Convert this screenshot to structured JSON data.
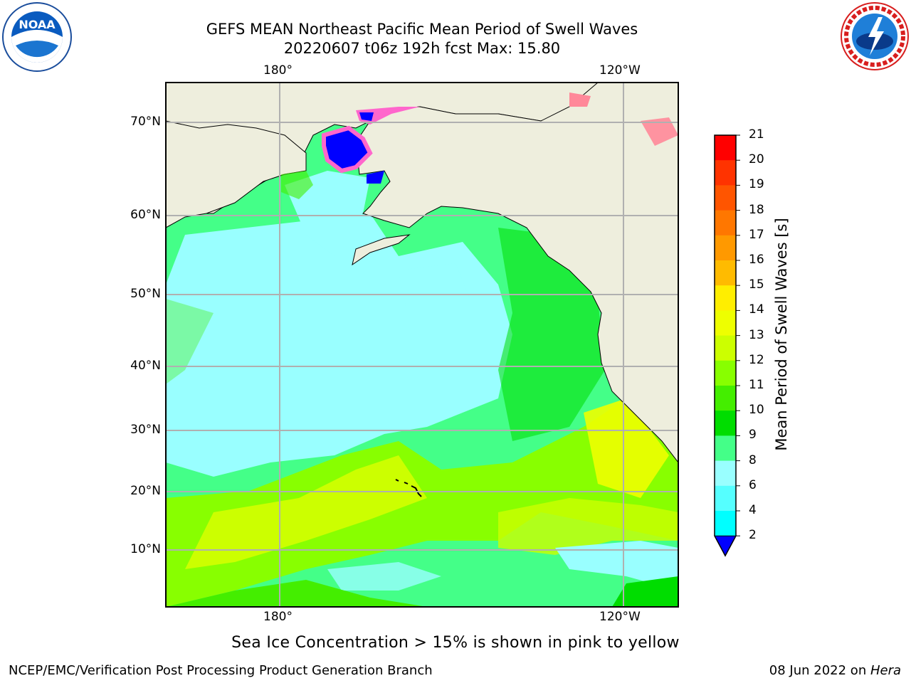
{
  "title": {
    "line1": "GEFS MEAN Northeast Pacific Mean Period of Swell Waves",
    "line2": "20220607 t06z 192h fcst   Max: 15.80"
  },
  "map": {
    "lon_top": [
      "180°",
      "120°W"
    ],
    "lon_bottom": [
      "180°",
      "120°W"
    ],
    "lat_labels": [
      "70°N",
      "60°N",
      "50°N",
      "40°N",
      "30°N",
      "20°N",
      "10°N"
    ],
    "land_color": "#eeeedd",
    "grid_color": "#b0b0b0"
  },
  "colorbar": {
    "label": "Mean Period of Swell Waves [s]",
    "ticks": [
      "21",
      "20",
      "19",
      "18",
      "17",
      "16",
      "15",
      "14",
      "13",
      "12",
      "11",
      "10",
      "9",
      "8",
      "6",
      "4",
      "2"
    ],
    "colors": [
      "#ff0000",
      "#ff3300",
      "#ff5500",
      "#ff7700",
      "#ff9900",
      "#ffbb00",
      "#ffee00",
      "#eeff00",
      "#ccff00",
      "#88ff00",
      "#44ee00",
      "#00dd00",
      "#44ff88",
      "#99ffff",
      "#55ffff",
      "#00ffff",
      "#00ddff",
      "#0077ff"
    ],
    "under_color": "#0000ff"
  },
  "note": "Sea Ice Concentration > 15% is shown in pink to yellow",
  "footer": {
    "left": "NCEP/EMC/Verification Post Processing Product Generation Branch",
    "right_prefix": "08 Jun 2022 on ",
    "right_machine": "Hera"
  },
  "logos": {
    "noaa_text": "NOAA",
    "nws_text": "NATIONAL WEATHER SERVICE"
  }
}
